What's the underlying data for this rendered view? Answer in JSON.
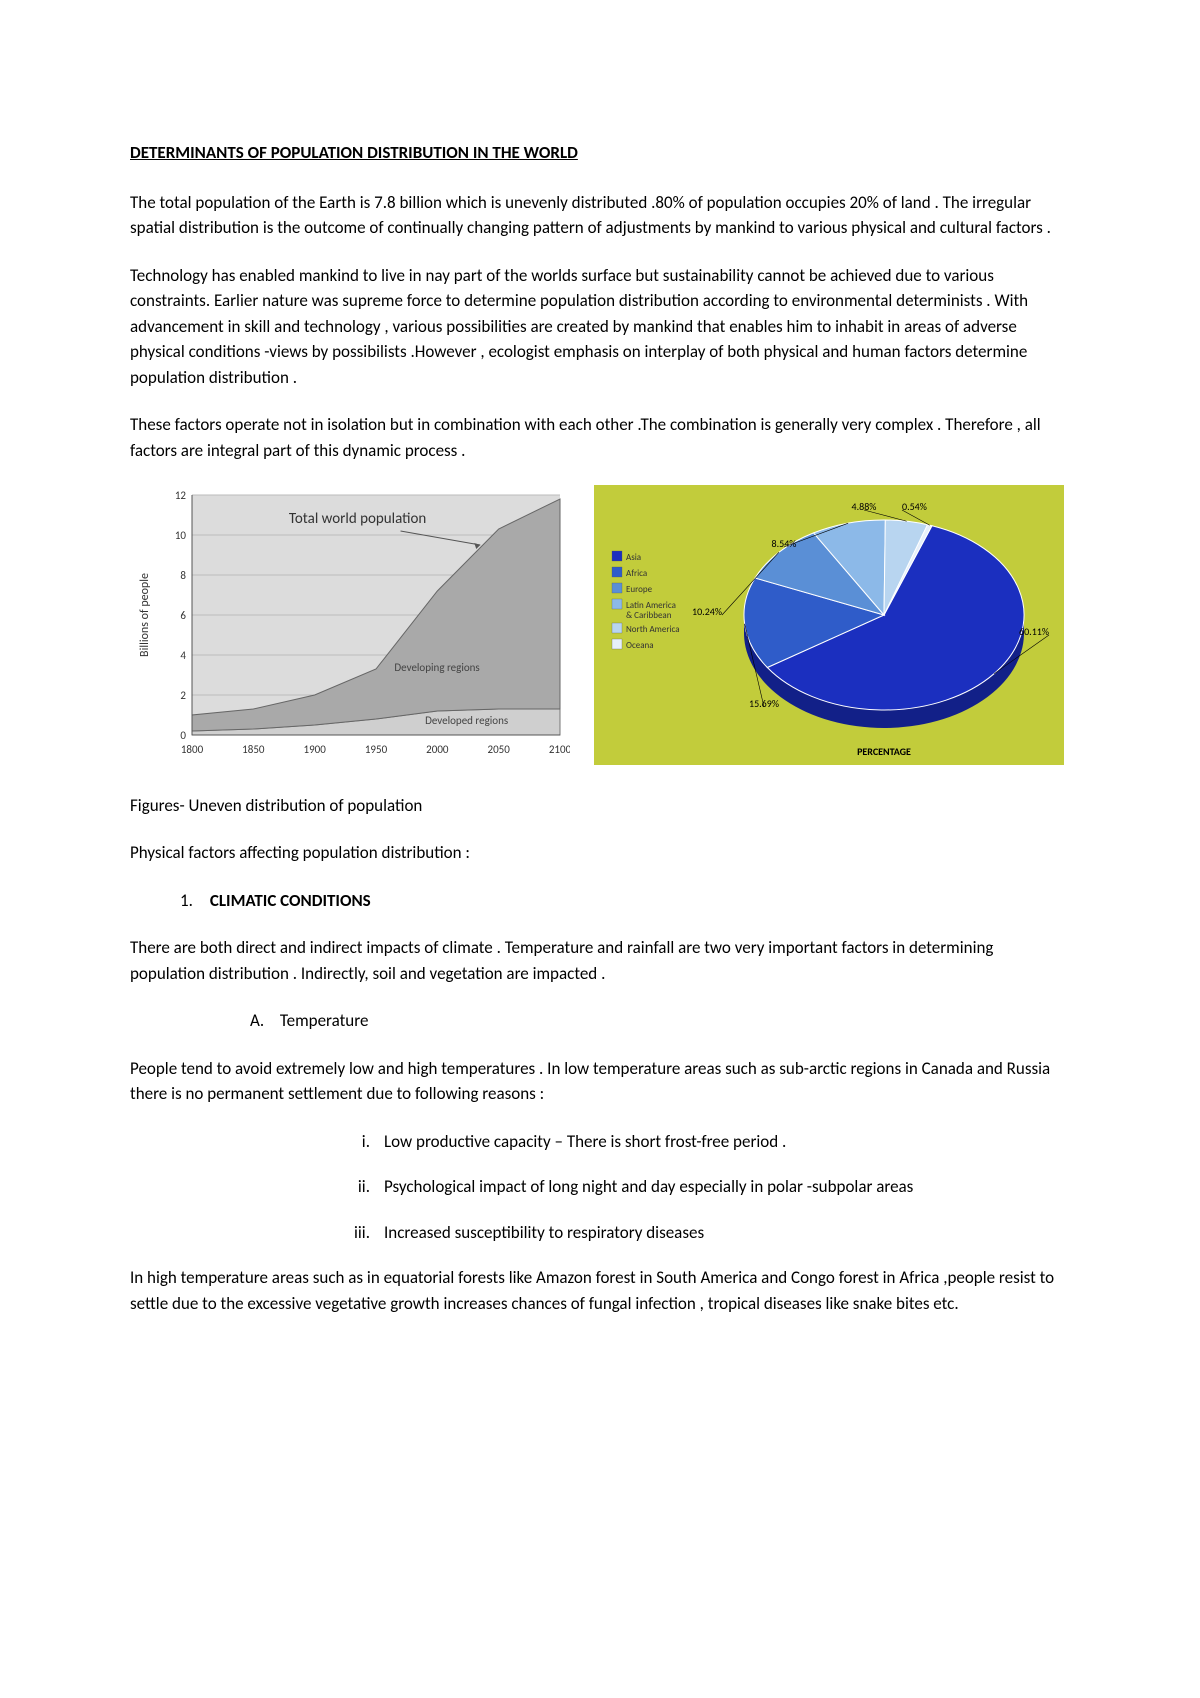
{
  "title": "DETERMINANTS OF POPULATION DISTRIBUTION IN THE WORLD",
  "p1": "The total population of the Earth is 7.8 billion which is unevenly distributed .80% of population occupies 20% of land . The irregular spatial distribution is the outcome of continually changing pattern of adjustments by mankind to various physical and cultural factors .",
  "p2": "Technology has enabled mankind to live in nay part of the worlds surface but sustainability cannot be achieved due to various constraints. Earlier nature was supreme force to determine population distribution according to environmental determinists . With advancement in skill and technology , various possibilities are created by mankind that enables him to inhabit in areas of adverse physical conditions -views by possibilists .However , ecologist emphasis on interplay of both physical and human factors determine population distribution .",
  "p3": "These factors operate not in isolation but in combination with each other .The combination is generally very complex . Therefore , all factors are integral part of this dynamic process .",
  "area_chart": {
    "type": "area",
    "title": "Total world population",
    "ylabel": "Billions of people",
    "ylim": [
      0,
      12
    ],
    "ytick_step": 2,
    "xticks": [
      1800,
      1850,
      1900,
      1950,
      2000,
      2050,
      2100
    ],
    "background_color": "#e0e0e0",
    "plot_bg": "#dcdcdc",
    "grid_color": "#bbbbbb",
    "series": [
      {
        "name": "Developed regions",
        "color": "#cfcfcf",
        "border": "#777777",
        "values": {
          "1800": 0.2,
          "1850": 0.3,
          "1900": 0.5,
          "1950": 0.8,
          "2000": 1.2,
          "2050": 1.3,
          "2100": 1.3
        }
      },
      {
        "name": "Developing regions",
        "color": "#a9a9a9",
        "border": "#666666",
        "values": {
          "1800": 0.8,
          "1850": 1.0,
          "1900": 1.5,
          "1950": 2.5,
          "2000": 6.0,
          "2050": 9.0,
          "2100": 10.5
        }
      }
    ],
    "label_fontsize": 12,
    "title_fontsize": 15
  },
  "pie_chart": {
    "type": "pie-3d",
    "title": "PERCENTAGE",
    "background_color": "#c2cc3b",
    "slices": [
      {
        "name": "Asia",
        "value": 60.11,
        "label": "60.11%",
        "color": "#1b2fbf"
      },
      {
        "name": "Africa",
        "value": 15.69,
        "label": "15.69%",
        "color": "#2f5cc9"
      },
      {
        "name": "Europe",
        "value": 10.24,
        "label": "10.24%",
        "color": "#5a8fd6"
      },
      {
        "name": "Latin America & Caribbean",
        "value": 8.54,
        "label": "8.54%",
        "color": "#8cb9e8"
      },
      {
        "name": "North America",
        "value": 4.88,
        "label": "4.88%",
        "color": "#b8d5f0"
      },
      {
        "name": "Oceana",
        "value": 0.54,
        "label": "0.54%",
        "color": "#e6f0fa"
      }
    ],
    "legend_fontsize": 9,
    "label_fontsize": 10
  },
  "caption": "Figures- Uneven distribution of population",
  "subhead": "Physical factors affecting population distribution :",
  "item1": {
    "num": "1.",
    "text": "CLIMATIC CONDITIONS"
  },
  "p4": "There are both direct and indirect impacts of climate . Temperature and rainfall are two very important factors in determining population distribution . Indirectly, soil and vegetation are impacted .",
  "itemA": {
    "let": "A.",
    "text": "Temperature"
  },
  "p5": "People tend to avoid extremely low and high temperatures . In low temperature areas such as sub-arctic regions in Canada and Russia  there is no permanent settlement due to following reasons :",
  "rom": {
    "i": {
      "n": "i.",
      "t": "Low productive capacity – There is short frost-free period ."
    },
    "ii": {
      "n": "ii.",
      "t": "Psychological impact of long night and day especially in polar -subpolar areas"
    },
    "iii": {
      "n": "iii.",
      "t": "Increased susceptibility to respiratory diseases"
    }
  },
  "p6": "In high temperature areas such as in equatorial forests like Amazon forest in South America and Congo forest in Africa ,people resist to settle due to the excessive vegetative growth increases chances of fungal infection , tropical diseases like snake bites etc."
}
